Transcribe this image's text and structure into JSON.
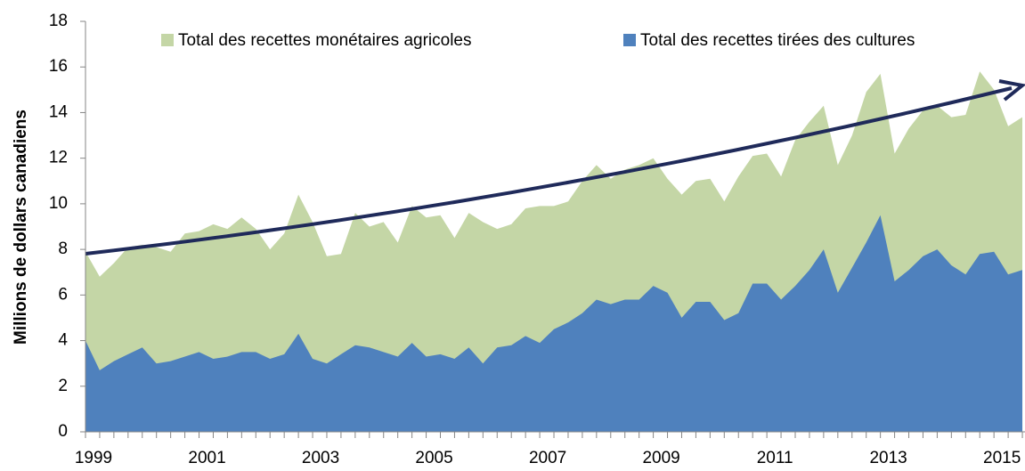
{
  "chart_data": {
    "type": "area",
    "y_label": "Millions de dollars canadiens",
    "categories": [
      "1999",
      null,
      null,
      null,
      null,
      null,
      null,
      null,
      "2001",
      null,
      null,
      null,
      null,
      null,
      null,
      null,
      "2003",
      null,
      null,
      null,
      null,
      null,
      null,
      null,
      "2005",
      null,
      null,
      null,
      null,
      null,
      null,
      null,
      "2007",
      null,
      null,
      null,
      null,
      null,
      null,
      null,
      "2009",
      null,
      null,
      null,
      null,
      null,
      null,
      null,
      "2011",
      null,
      null,
      null,
      null,
      null,
      null,
      null,
      "2013",
      null,
      null,
      null,
      null,
      null,
      null,
      null,
      "2015",
      null,
      null
    ],
    "series": [
      {
        "name": "Total des recettes monétaires agricoles",
        "color": "#c4d6a6",
        "values": [
          7.9,
          6.8,
          7.4,
          8.1,
          8.2,
          8.1,
          7.9,
          8.7,
          8.8,
          9.1,
          8.9,
          9.4,
          8.9,
          8.0,
          8.7,
          10.4,
          9.2,
          7.7,
          7.8,
          9.6,
          9.0,
          9.2,
          8.3,
          9.9,
          9.4,
          9.5,
          8.5,
          9.6,
          9.2,
          8.9,
          9.1,
          9.8,
          9.9,
          9.9,
          10.1,
          11.0,
          11.7,
          11.1,
          11.5,
          11.7,
          12.0,
          11.1,
          10.4,
          11.0,
          11.1,
          10.1,
          11.2,
          12.1,
          12.2,
          11.2,
          12.8,
          13.6,
          14.3,
          11.7,
          13.0,
          14.9,
          15.7,
          12.2,
          13.3,
          14.1,
          14.3,
          13.8,
          13.9,
          15.8,
          15.0,
          13.4,
          13.8
        ]
      },
      {
        "name": "Total des recettes tirées des cultures",
        "color": "#4f81bd",
        "values": [
          4.0,
          2.7,
          3.1,
          3.4,
          3.7,
          3.0,
          3.1,
          3.3,
          3.5,
          3.2,
          3.3,
          3.5,
          3.5,
          3.2,
          3.4,
          4.3,
          3.2,
          3.0,
          3.4,
          3.8,
          3.7,
          3.5,
          3.3,
          3.9,
          3.3,
          3.4,
          3.2,
          3.7,
          3.0,
          3.7,
          3.8,
          4.2,
          3.9,
          4.5,
          4.8,
          5.2,
          5.8,
          5.6,
          5.8,
          5.8,
          6.4,
          6.1,
          5.0,
          5.7,
          5.7,
          4.9,
          5.2,
          6.5,
          6.5,
          5.8,
          6.4,
          7.1,
          8.0,
          6.1,
          7.2,
          8.3,
          9.5,
          6.6,
          7.1,
          7.7,
          8.0,
          7.3,
          6.9,
          7.8,
          7.9,
          6.9,
          7.1
        ]
      }
    ],
    "ylim": [
      0,
      18
    ],
    "yticks": [
      0,
      2,
      4,
      6,
      8,
      10,
      12,
      14,
      16,
      18
    ],
    "legend": "top"
  }
}
